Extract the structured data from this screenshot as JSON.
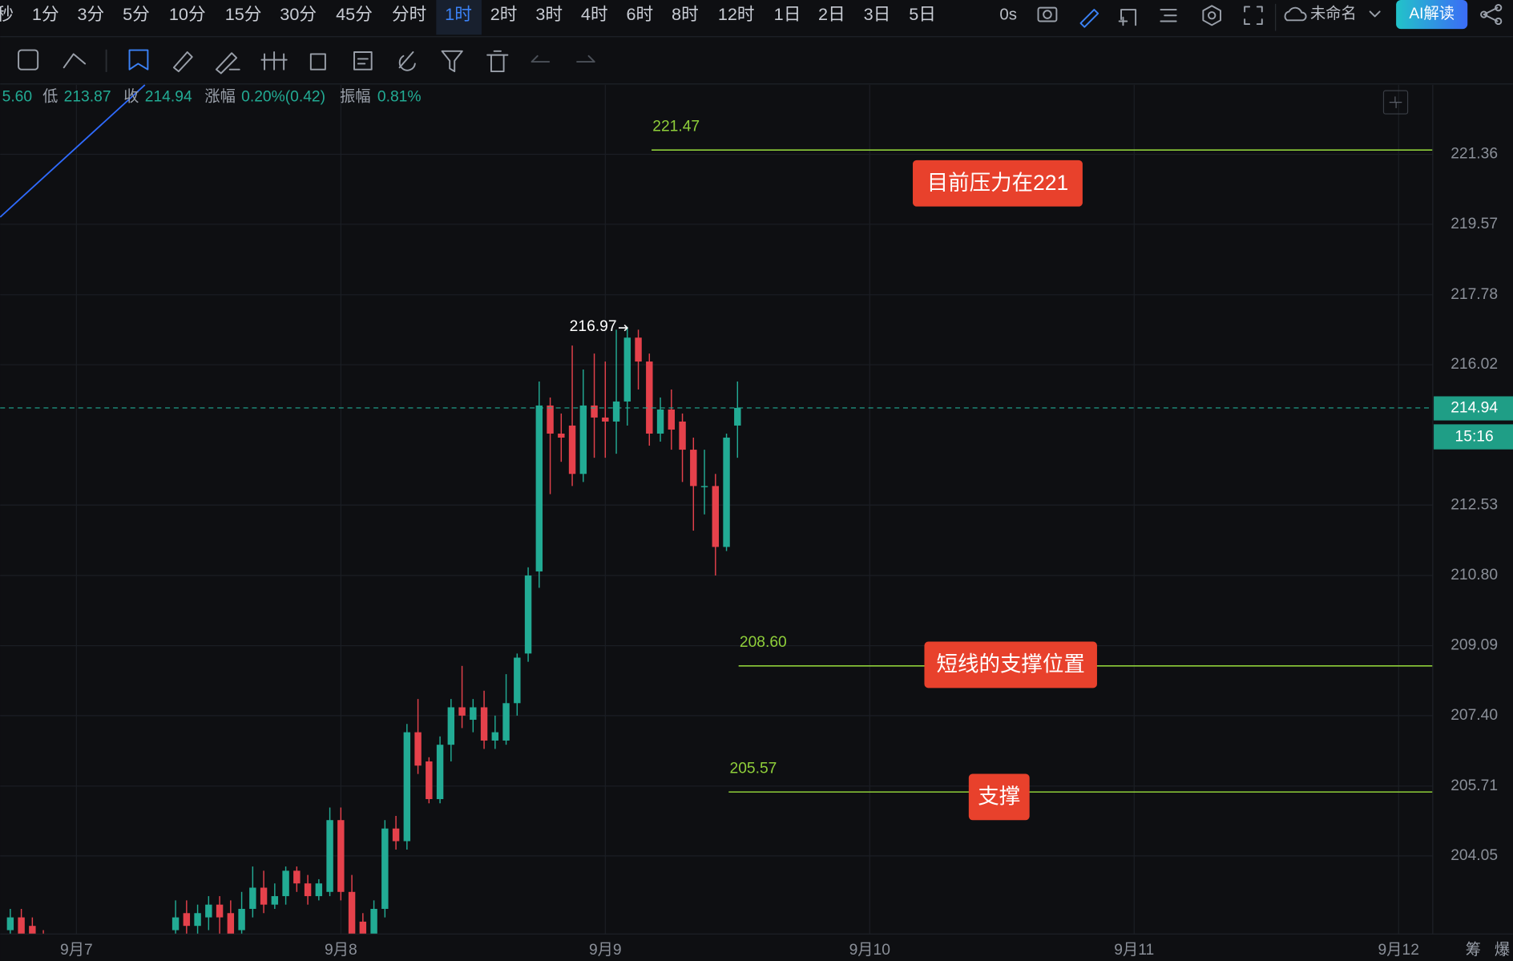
{
  "toolbar": {
    "intervals": [
      "秒",
      "1分",
      "3分",
      "5分",
      "10分",
      "15分",
      "30分",
      "45分",
      "分时",
      "1时",
      "2时",
      "3时",
      "4时",
      "6时",
      "8时",
      "12时",
      "1日",
      "2日",
      "3日",
      "5日"
    ],
    "active": "1时",
    "timer": "0s",
    "layout_name": "未命名",
    "ai_button": "AI解读"
  },
  "info_bar": {
    "lead": "5.60",
    "items": [
      {
        "label": "低",
        "value": "213.87"
      },
      {
        "label": "收",
        "value": "214.94"
      },
      {
        "label": "涨幅",
        "value": "0.20%(0.42)"
      },
      {
        "label": "振幅",
        "value": "0.81%"
      }
    ]
  },
  "side_labels": [
    "筹",
    "爆"
  ],
  "chart_data": {
    "type": "candlestick",
    "log_scale": true,
    "grid": true,
    "up_color": "#22ab94",
    "down_color": "#e5414b",
    "level_color": "#8fcf3a",
    "annotation_color": "#e8412c",
    "xlim": [
      -6.92,
      123.1
    ],
    "xticks": [
      {
        "value": 0,
        "label": "9月7"
      },
      {
        "value": 24,
        "label": "9月8"
      },
      {
        "value": 48,
        "label": "9月9"
      },
      {
        "value": 72,
        "label": "9月10"
      },
      {
        "value": 96,
        "label": "9月11"
      },
      {
        "value": 120,
        "label": "9月12"
      }
    ],
    "ylim": [
      202.21,
      223.15
    ],
    "yticks": [
      221.36,
      219.57,
      217.78,
      216.02,
      212.53,
      {
        "value": 210.8,
        "label": "210.80"
      },
      209.09,
      {
        "value": 207.4,
        "label": "207.40"
      },
      205.71,
      204.05
    ],
    "x": [
      -6,
      -5,
      -4,
      -3,
      9,
      10,
      11,
      12,
      13,
      14,
      15,
      16,
      17,
      18,
      19,
      20,
      21,
      22,
      23,
      24,
      25,
      26,
      27,
      28,
      29,
      30,
      31,
      32,
      33,
      34,
      35,
      36,
      37,
      38,
      39,
      40,
      41,
      42,
      43,
      44,
      45,
      46,
      47,
      48,
      49,
      50,
      51,
      52,
      53,
      54,
      55,
      56,
      57,
      58,
      59,
      60
    ],
    "open": [
      202.3,
      202.6,
      202.4,
      202.2,
      202.3,
      202.7,
      202.4,
      202.6,
      202.9,
      202.7,
      202.3,
      202.8,
      203.3,
      202.9,
      203.1,
      203.7,
      203.4,
      203.1,
      203.2,
      204.9,
      203.2,
      202.5,
      202.1,
      202.8,
      204.7,
      204.4,
      207.0,
      206.3,
      205.4,
      206.7,
      207.6,
      207.3,
      207.6,
      206.8,
      206.8,
      207.7,
      208.9,
      210.9,
      215.0,
      214.3,
      214.5,
      213.3,
      215.0,
      214.7,
      214.6,
      215.1,
      216.7,
      216.1,
      214.3,
      214.9,
      214.6,
      213.9,
      213.0,
      213.0,
      211.5,
      214.5
    ],
    "high": [
      202.8,
      202.8,
      202.6,
      202.3,
      203.0,
      203.0,
      202.9,
      203.1,
      203.1,
      203.0,
      203.2,
      203.8,
      203.7,
      203.4,
      203.8,
      203.8,
      203.6,
      203.5,
      205.2,
      205.2,
      203.6,
      202.7,
      203.0,
      204.9,
      205.0,
      207.2,
      207.8,
      206.4,
      206.9,
      207.8,
      208.6,
      207.8,
      208.0,
      207.4,
      208.4,
      208.9,
      211.0,
      215.6,
      215.2,
      214.8,
      216.5,
      215.9,
      216.3,
      216.1,
      216.9,
      216.97,
      216.9,
      216.3,
      215.2,
      215.4,
      214.8,
      214.2,
      213.9,
      213.3,
      214.3,
      215.6
    ],
    "low": [
      202.1,
      202.1,
      202.1,
      202.1,
      202.1,
      202.1,
      202.2,
      202.3,
      202.2,
      202.1,
      202.1,
      202.6,
      202.7,
      202.8,
      202.9,
      203.2,
      202.9,
      203.0,
      203.1,
      203.0,
      202.1,
      202.1,
      202.1,
      202.6,
      204.2,
      204.2,
      206.0,
      205.3,
      205.3,
      206.3,
      207.1,
      207.0,
      206.6,
      206.6,
      206.7,
      207.4,
      208.7,
      210.5,
      212.8,
      213.6,
      213.0,
      213.1,
      213.7,
      213.7,
      213.8,
      214.5,
      215.4,
      214.0,
      214.1,
      213.9,
      213.1,
      211.9,
      212.3,
      210.8,
      211.4,
      213.7
    ],
    "close": [
      202.6,
      202.2,
      202.1,
      202.1,
      202.6,
      202.4,
      202.7,
      202.9,
      202.6,
      202.1,
      202.8,
      203.3,
      202.9,
      203.1,
      203.7,
      203.4,
      203.1,
      203.4,
      204.9,
      203.2,
      202.1,
      202.1,
      202.8,
      204.7,
      204.4,
      207.0,
      206.2,
      205.4,
      206.7,
      207.6,
      207.4,
      207.6,
      206.8,
      207.0,
      207.7,
      208.8,
      210.8,
      215.0,
      214.3,
      214.2,
      213.3,
      215.0,
      214.7,
      214.6,
      215.1,
      216.7,
      216.1,
      214.3,
      214.9,
      214.4,
      213.9,
      213.0,
      213.0,
      211.5,
      214.2,
      214.94
    ],
    "current_price": 214.94,
    "countdown": "15:16",
    "max_marker": {
      "value": 216.97,
      "x": 50
    },
    "levels": [
      {
        "value": 221.47,
        "x_start": 52.2
      },
      {
        "value": 208.6,
        "label": "208.60",
        "x_start": 60.1
      },
      {
        "value": 205.57,
        "x_start": 59.2
      }
    ],
    "annotations": [
      "目前压力在221",
      "短线的支撑位置",
      "支撑"
    ]
  }
}
